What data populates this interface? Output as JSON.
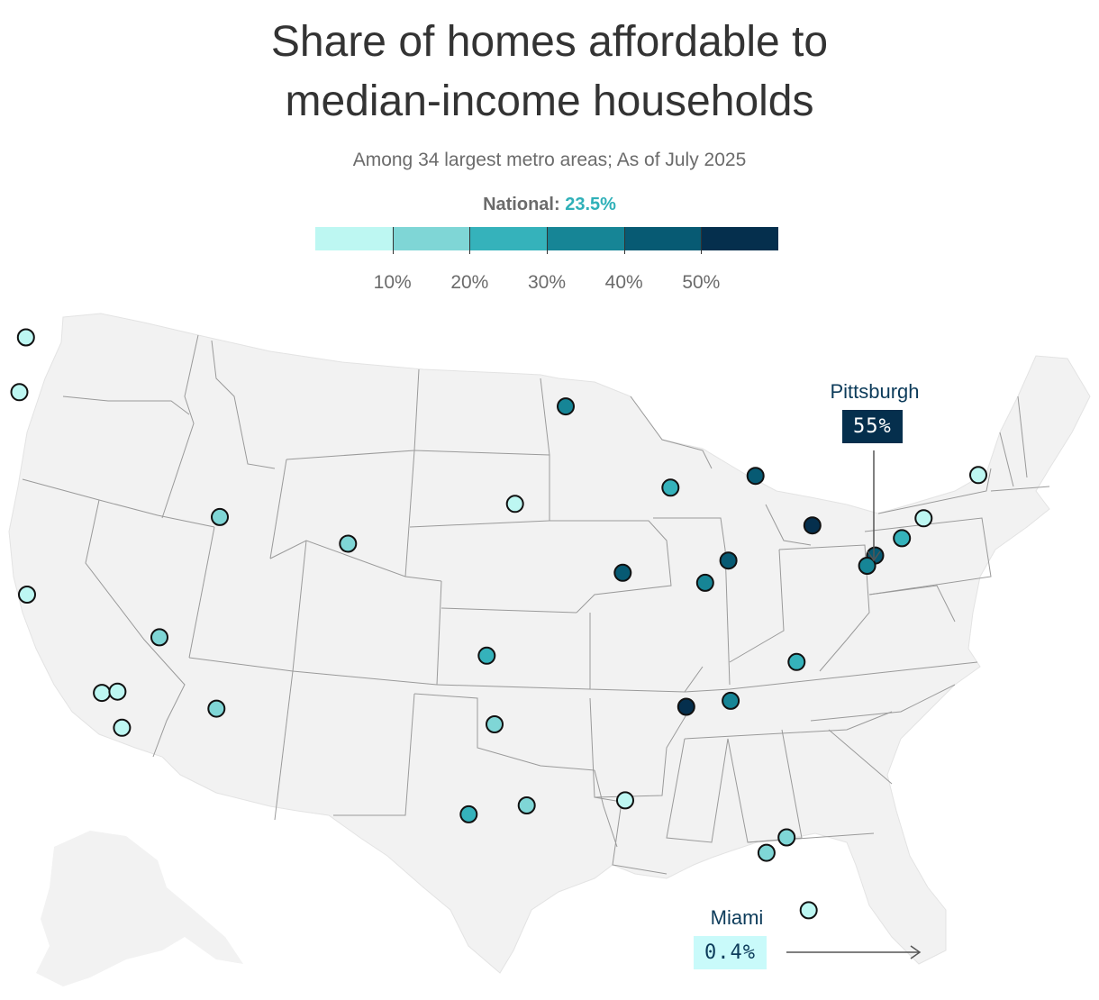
{
  "title_line1": "Share of homes affordable to",
  "title_line2": "median-income households",
  "subtitle": "Among 34 largest metro areas; As of July 2025",
  "legend": {
    "national_label": "National:",
    "national_value": "23.5%",
    "bins": [
      {
        "color": "#bdf7f2"
      },
      {
        "color": "#7fd6d6"
      },
      {
        "color": "#35b2bb"
      },
      {
        "color": "#168596"
      },
      {
        "color": "#075a73"
      },
      {
        "color": "#052f4d"
      }
    ],
    "ticks": [
      "10%",
      "20%",
      "30%",
      "40%",
      "50%"
    ]
  },
  "annotations": {
    "pittsburgh": {
      "name": "Pittsburgh",
      "value": "55%",
      "box_color": "#052f4d",
      "text_color": "#ffffff"
    },
    "miami": {
      "name": "Miami",
      "value": "0.4%",
      "box_color": "#c9fafa",
      "text_color": "#0c3b5a"
    }
  },
  "chart_data": {
    "type": "map-dots",
    "unit": "percent",
    "metros": [
      {
        "lon": -122.33,
        "lat": 47.61,
        "value": 5
      },
      {
        "lon": -122.68,
        "lat": 45.52,
        "value": 5
      },
      {
        "lon": -122.27,
        "lat": 37.8,
        "value": 3
      },
      {
        "lon": -118.24,
        "lat": 34.05,
        "value": 4
      },
      {
        "lon": -117.16,
        "lat": 32.72,
        "value": 3
      },
      {
        "lon": -117.4,
        "lat": 34.1,
        "value": 6
      },
      {
        "lon": -115.14,
        "lat": 36.17,
        "value": 15
      },
      {
        "lon": -112.07,
        "lat": 33.45,
        "value": 15
      },
      {
        "lon": -111.89,
        "lat": 40.76,
        "value": 14
      },
      {
        "lon": -104.99,
        "lat": 39.74,
        "value": 14
      },
      {
        "lon": -97.52,
        "lat": 35.47,
        "value": 28
      },
      {
        "lon": -97.1,
        "lat": 32.85,
        "value": 18
      },
      {
        "lon": -98.49,
        "lat": 29.42,
        "value": 25
      },
      {
        "lon": -95.37,
        "lat": 29.76,
        "value": 18
      },
      {
        "lon": -96.0,
        "lat": 41.26,
        "value": 5
      },
      {
        "lon": -93.27,
        "lat": 44.98,
        "value": 32
      },
      {
        "lon": -90.2,
        "lat": 38.63,
        "value": 42
      },
      {
        "lon": -87.63,
        "lat": 41.88,
        "value": 27
      },
      {
        "lon": -83.05,
        "lat": 42.33,
        "value": 45
      },
      {
        "lon": -84.51,
        "lat": 39.1,
        "value": 44
      },
      {
        "lon": -85.76,
        "lat": 38.25,
        "value": 33
      },
      {
        "lon": -79.99,
        "lat": 40.44,
        "value": 55
      },
      {
        "lon": -76.61,
        "lat": 39.29,
        "value": 42
      },
      {
        "lon": -77.04,
        "lat": 38.9,
        "value": 34
      },
      {
        "lon": -75.17,
        "lat": 39.95,
        "value": 28
      },
      {
        "lon": -74.0,
        "lat": 40.71,
        "value": 5
      },
      {
        "lon": -71.06,
        "lat": 42.36,
        "value": 5
      },
      {
        "lon": -80.84,
        "lat": 35.23,
        "value": 27
      },
      {
        "lon": -84.39,
        "lat": 33.75,
        "value": 34
      },
      {
        "lon": -86.78,
        "lat": 33.52,
        "value": 52
      },
      {
        "lon": -90.07,
        "lat": 29.95,
        "value": 4
      },
      {
        "lon": -81.38,
        "lat": 28.54,
        "value": 17
      },
      {
        "lon": -82.46,
        "lat": 27.95,
        "value": 17
      },
      {
        "lon": -80.19,
        "lat": 25.76,
        "value": 0.4
      }
    ]
  }
}
